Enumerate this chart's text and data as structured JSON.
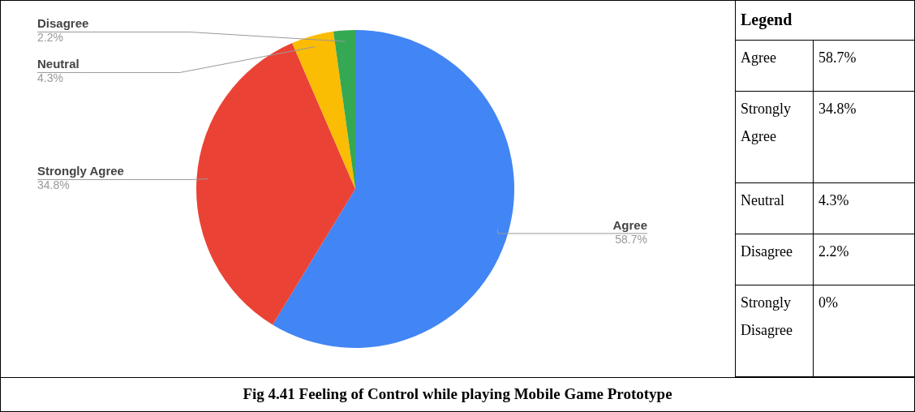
{
  "chart_data": {
    "type": "pie",
    "title": "Fig 4.41 Feeling of Control while playing Mobile Game Prototype",
    "legend_title": "Legend",
    "categories": [
      "Agree",
      "Strongly Agree",
      "Neutral",
      "Disagree",
      "Strongly Disagree"
    ],
    "values": [
      58.7,
      34.8,
      4.3,
      2.2,
      0
    ],
    "value_labels": [
      "58.7%",
      "34.8%",
      "4.3%",
      "2.2%",
      "0%"
    ],
    "colors": [
      "#4285f4",
      "#ea4335",
      "#fbbc04",
      "#34a853",
      "#ff6d01"
    ]
  }
}
